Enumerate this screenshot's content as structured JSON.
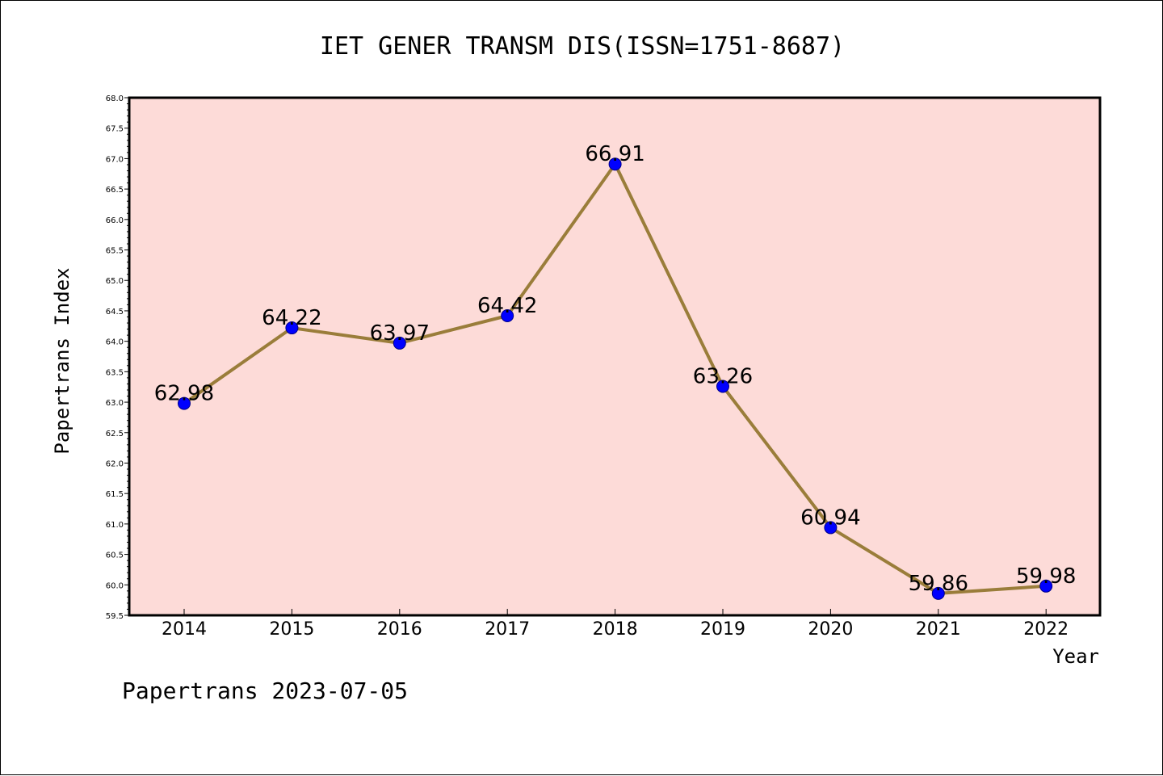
{
  "chart_data": {
    "type": "line",
    "title": "IET GENER TRANSM DIS(ISSN=1751-8687)",
    "xlabel": "Year",
    "ylabel": "Papertrans Index",
    "categories": [
      "2014",
      "2015",
      "2016",
      "2017",
      "2018",
      "2019",
      "2020",
      "2021",
      "2022"
    ],
    "values": [
      62.98,
      64.22,
      63.97,
      64.42,
      66.91,
      63.26,
      60.94,
      59.86,
      59.98
    ],
    "data_labels": [
      "62.98",
      "64.22",
      "63.97",
      "64.42",
      "66.91",
      "63.26",
      "60.94",
      "59.86",
      "59.98"
    ],
    "ylim": [
      59.5,
      68.0
    ],
    "yticks": [
      "59.5",
      "60.0",
      "60.5",
      "61.0",
      "61.5",
      "62.0",
      "62.5",
      "63.0",
      "63.5",
      "64.0",
      "64.5",
      "65.0",
      "65.5",
      "66.0",
      "66.5",
      "67.0",
      "67.5",
      "68.0"
    ],
    "grid": false,
    "colors": {
      "plot_background": "#fddbd8",
      "line": "#9a7d3a",
      "marker": "#0000ff"
    }
  },
  "footer": {
    "text": "Papertrans 2023-07-05"
  }
}
